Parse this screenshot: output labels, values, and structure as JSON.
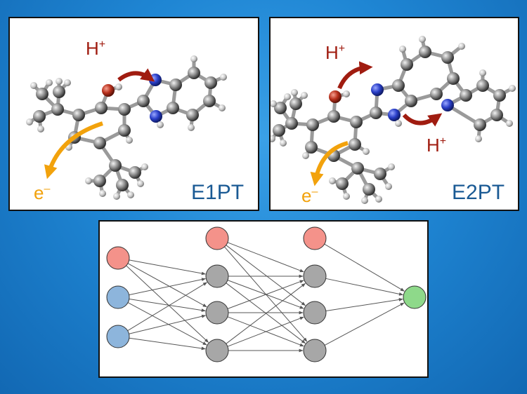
{
  "panels": {
    "e1": {
      "label": "E1PT",
      "proton": "H",
      "proton_charge": "+",
      "electron": "e",
      "electron_charge": "–"
    },
    "e2": {
      "label": "E2PT",
      "proton": "H",
      "proton_charge": "+",
      "proton2": "H",
      "proton2_charge": "+",
      "electron": "e",
      "electron_charge": "–"
    }
  },
  "network": {
    "layers": [
      [
        "red",
        "blue",
        "blue"
      ],
      [
        "red",
        "gray",
        "gray",
        "gray"
      ],
      [
        "red",
        "gray",
        "gray",
        "gray"
      ],
      [
        "green"
      ]
    ],
    "colors": {
      "red": "#f4928a",
      "blue": "#8db5dc",
      "gray": "#a7a7a7",
      "green": "#8ed98a"
    }
  },
  "colors": {
    "proton_arrow": "#a01c10",
    "electron_arrow": "#f2a20c",
    "label": "#1a5a94",
    "oxygen": "#b8301c",
    "nitrogen": "#2a3fc8",
    "carbon": "#8a8a8a"
  }
}
